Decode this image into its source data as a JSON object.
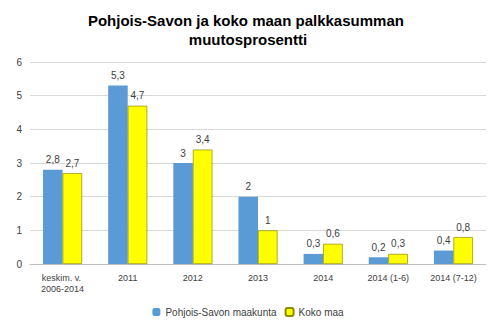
{
  "chart_data": {
    "type": "bar",
    "title": "Pohjois-Savon ja koko maan palkkasumman muutosprosentti",
    "categories": [
      "keskim. v. 2006-2014",
      "2011",
      "2012",
      "2013",
      "2014",
      "2014 (1-6)",
      "2014 (7-12)"
    ],
    "series": [
      {
        "name": "Pohjois-Savon maakunta",
        "color": "#5b9bd5",
        "values": [
          2.8,
          5.3,
          3,
          2,
          0.3,
          0.2,
          0.4
        ],
        "value_labels": [
          "2,8",
          "5,3",
          "3",
          "2",
          "0,3",
          "0,2",
          "0,4"
        ]
      },
      {
        "name": "Koko maa",
        "color": "#ffff00",
        "values": [
          2.7,
          4.7,
          3.4,
          1,
          0.6,
          0.3,
          0.8
        ],
        "value_labels": [
          "2,7",
          "4,7",
          "3,4",
          "1",
          "0,6",
          "0,3",
          "0,8"
        ]
      }
    ],
    "ylim": [
      0,
      6
    ],
    "yticks": [
      0,
      1,
      2,
      3,
      4,
      5,
      6
    ],
    "grid": true,
    "legend": "bottom",
    "data_labels": true
  }
}
